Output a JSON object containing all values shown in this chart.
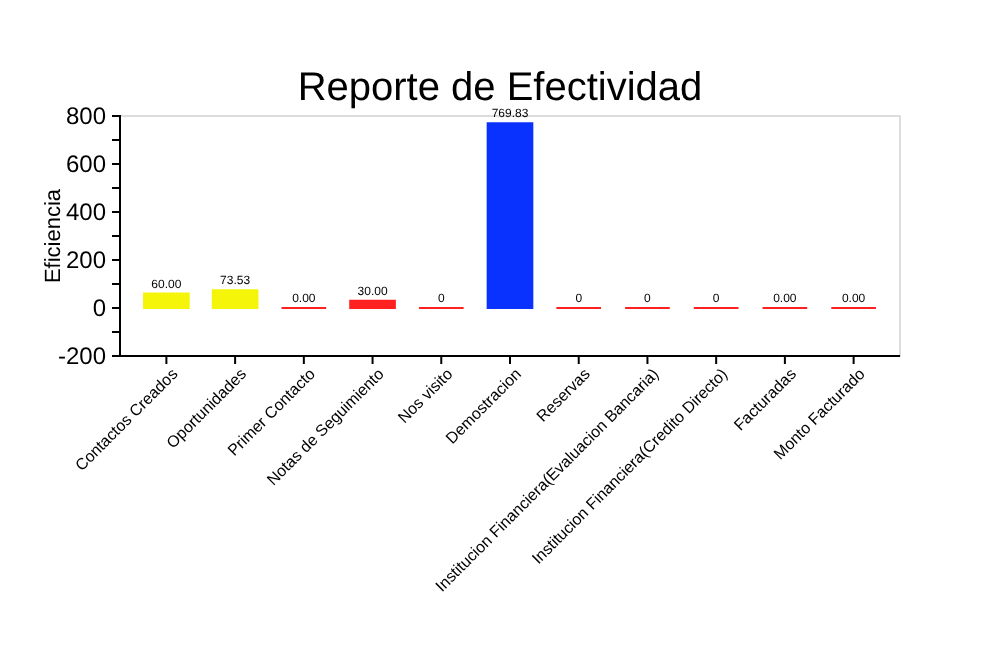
{
  "chart_data": {
    "type": "bar",
    "title": "Reporte de Efectividad",
    "ylabel": "Eficiencia",
    "categories": [
      "Contactos Creados",
      "Oportunidades",
      "Primer Contacto",
      "Notas de Seguimiento",
      "Nos visito",
      "Demostracion",
      "Reservas",
      "Institucion Financiera(Evaluacion Bancaria)",
      "Institucion Financiera(Credito Directo)",
      "Facturadas",
      "Monto Facturado"
    ],
    "values": [
      60,
      73.53,
      0,
      30,
      0,
      769.83,
      0,
      0,
      0,
      0,
      0
    ],
    "value_labels": [
      "60.00",
      "73.53",
      "0.00",
      "30.00",
      "0",
      "769.83",
      "0",
      "0",
      "0",
      "0.00",
      "0.00"
    ],
    "colors": [
      "#f5f50a",
      "#f5f50a",
      "#ff2020",
      "#ff2020",
      "#ff2020",
      "#0a32ff",
      "#ff2020",
      "#ff2020",
      "#ff2020",
      "#ff2020",
      "#ff2020"
    ],
    "ylim": [
      -200,
      800
    ],
    "yticks": [
      -200,
      {
        "value": -100,
        "label": null
      },
      0,
      {
        "value": 100,
        "label": null
      },
      200,
      {
        "value": 300,
        "label": null
      },
      400,
      {
        "value": 500,
        "label": null
      },
      600,
      {
        "value": 700,
        "label": null
      },
      800
    ]
  }
}
